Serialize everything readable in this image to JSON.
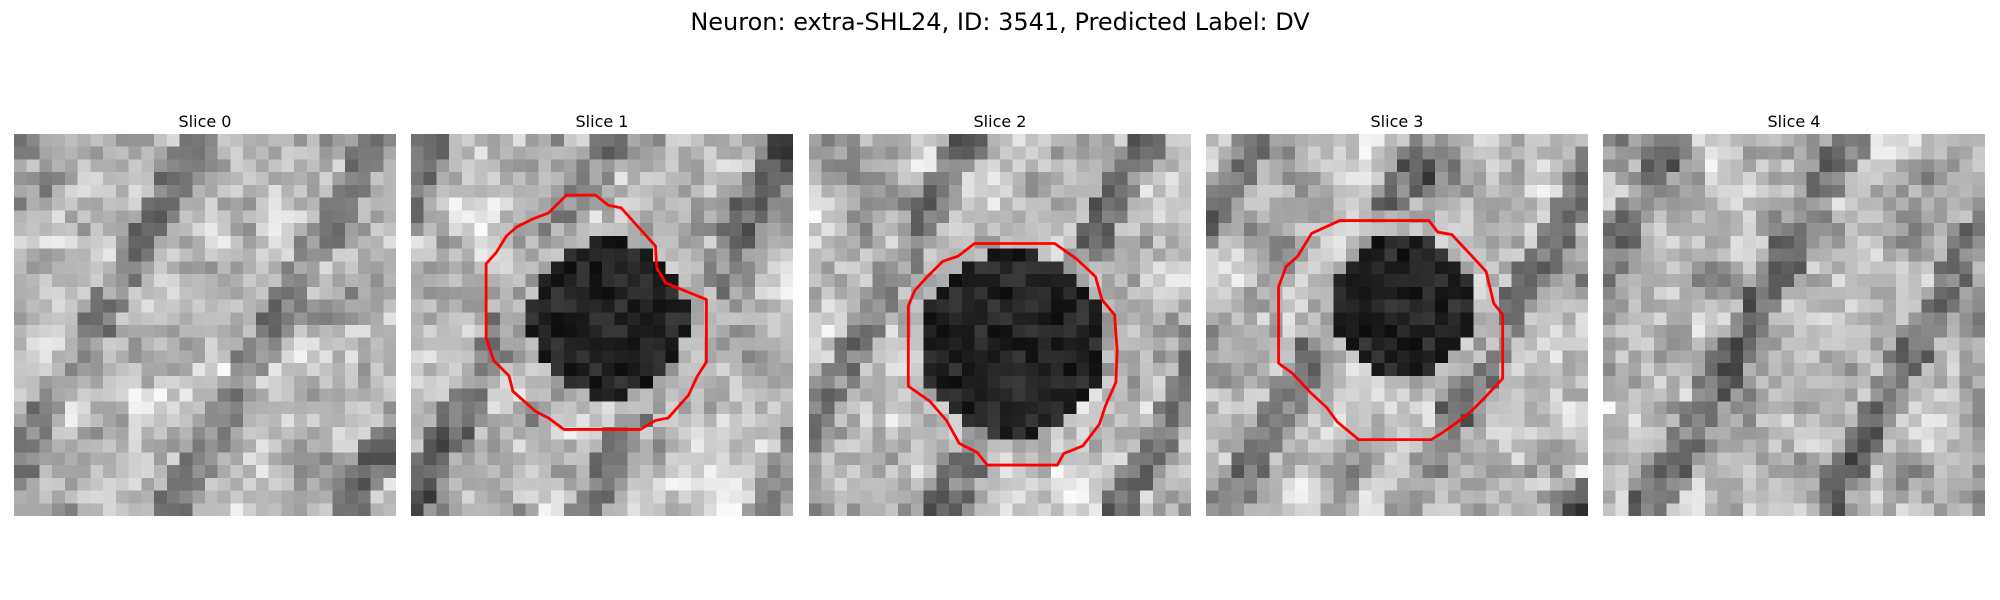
{
  "figure": {
    "title": "Neuron: extra-SHL24, ID: 3541, Predicted Label: DV"
  },
  "colors": {
    "contour": "#ff0000",
    "background": "#ffffff",
    "colormap": "grayscale"
  },
  "panels": [
    {
      "title": "Slice 0",
      "has_contour": false
    },
    {
      "title": "Slice 1",
      "has_contour": true
    },
    {
      "title": "Slice 2",
      "has_contour": true
    },
    {
      "title": "Slice 3",
      "has_contour": true
    },
    {
      "title": "Slice 4",
      "has_contour": false
    }
  ]
}
